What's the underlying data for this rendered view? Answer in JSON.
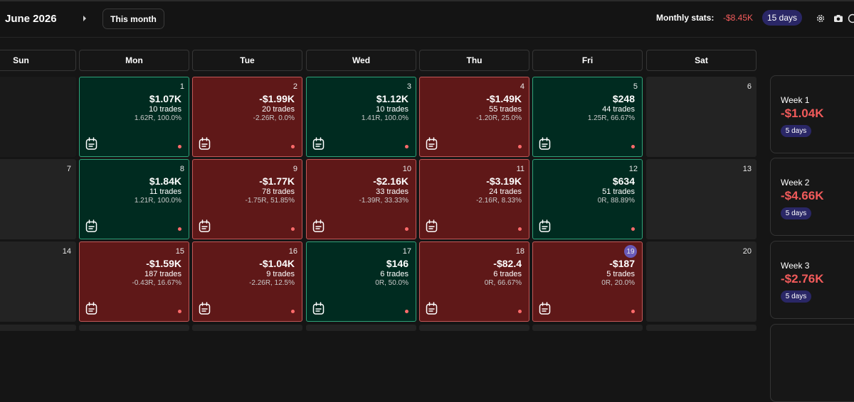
{
  "header": {
    "month_title": "June 2026",
    "this_month_label": "This month",
    "monthly_stats_label": "Monthly stats:",
    "monthly_pnl": "-$8.45K",
    "monthly_days": "15 days",
    "negative_color": "#f25b5b",
    "icons": [
      "chevron-right-icon",
      "gear-icon",
      "camera-icon",
      "info-icon"
    ]
  },
  "weekdays": [
    "Sun",
    "Mon",
    "Tue",
    "Wed",
    "Thu",
    "Fri",
    "Sat"
  ],
  "colors": {
    "positive_bg": "#002b20",
    "negative_bg": "#5f1818",
    "empty_bg": "#232323",
    "accent": "#2a2766",
    "today_badge": "#6a5ab8"
  },
  "weeks": [
    {
      "label": "Week 1",
      "pnl": "-$1.04K",
      "days": "5 days",
      "cells": [
        {
          "day": "",
          "state": "empty-dark"
        },
        {
          "day": "1",
          "state": "pos",
          "pnl": "$1.07K",
          "trades": "10 trades",
          "stats": "1.62R, 100.0%"
        },
        {
          "day": "2",
          "state": "neg",
          "pnl": "-$1.99K",
          "trades": "20 trades",
          "stats": "-2.26R, 0.0%"
        },
        {
          "day": "3",
          "state": "pos",
          "pnl": "$1.12K",
          "trades": "10 trades",
          "stats": "1.41R, 100.0%"
        },
        {
          "day": "4",
          "state": "neg",
          "pnl": "-$1.49K",
          "trades": "55 trades",
          "stats": "-1.20R, 25.0%"
        },
        {
          "day": "5",
          "state": "pos",
          "pnl": "$248",
          "trades": "44 trades",
          "stats": "1.25R, 66.67%"
        },
        {
          "day": "6",
          "state": "empty"
        }
      ]
    },
    {
      "label": "Week 2",
      "pnl": "-$4.66K",
      "days": "5 days",
      "cells": [
        {
          "day": "7",
          "state": "empty"
        },
        {
          "day": "8",
          "state": "pos",
          "pnl": "$1.84K",
          "trades": "11 trades",
          "stats": "1.21R, 100.0%"
        },
        {
          "day": "9",
          "state": "neg",
          "pnl": "-$1.77K",
          "trades": "78 trades",
          "stats": "-1.75R, 51.85%"
        },
        {
          "day": "10",
          "state": "neg",
          "pnl": "-$2.16K",
          "trades": "33 trades",
          "stats": "-1.39R, 33.33%"
        },
        {
          "day": "11",
          "state": "neg",
          "pnl": "-$3.19K",
          "trades": "24 trades",
          "stats": "-2.16R, 8.33%"
        },
        {
          "day": "12",
          "state": "pos",
          "pnl": "$634",
          "trades": "51 trades",
          "stats": "0R, 88.89%"
        },
        {
          "day": "13",
          "state": "empty"
        }
      ]
    },
    {
      "label": "Week 3",
      "pnl": "-$2.76K",
      "days": "5 days",
      "cells": [
        {
          "day": "14",
          "state": "empty"
        },
        {
          "day": "15",
          "state": "neg",
          "pnl": "-$1.59K",
          "trades": "187 trades",
          "stats": "-0.43R, 16.67%"
        },
        {
          "day": "16",
          "state": "neg",
          "pnl": "-$1.04K",
          "trades": "9 trades",
          "stats": "-2.26R, 12.5%"
        },
        {
          "day": "17",
          "state": "pos",
          "pnl": "$146",
          "trades": "6 trades",
          "stats": "0R, 50.0%"
        },
        {
          "day": "18",
          "state": "neg",
          "pnl": "-$82.4",
          "trades": "6 trades",
          "stats": "0R, 66.67%"
        },
        {
          "day": "19",
          "state": "neg",
          "pnl": "-$187",
          "trades": "5 trades",
          "stats": "0R, 20.0%",
          "today": true
        },
        {
          "day": "20",
          "state": "empty"
        }
      ]
    }
  ]
}
